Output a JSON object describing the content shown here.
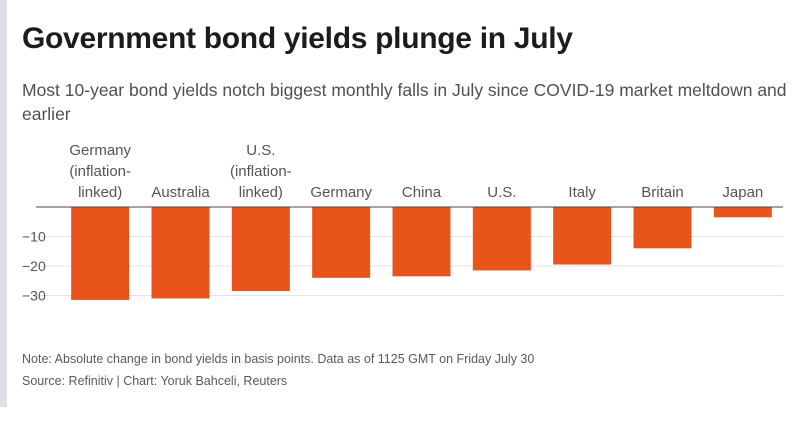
{
  "header": {
    "title": "Government bond yields plunge in July",
    "subtitle": "Most 10-year bond yields notch biggest monthly falls in July since COVID-19 market meltdown and earlier"
  },
  "footer": {
    "note": "Note: Absolute change in bond yields in basis points. Data as of 1125 GMT on Friday July 30",
    "source": "Source: Refinitiv | Chart: Yoruk Bahceli, Reuters"
  },
  "colors": {
    "bar": "#e8541a",
    "axis": "#4a4a4a",
    "grid": "#e3e3e3",
    "text": "#555555"
  },
  "chart_data": {
    "type": "bar",
    "categories": [
      [
        "Germany",
        "(inflation-",
        "linked)"
      ],
      [
        "Australia"
      ],
      [
        "U.S.",
        "(inflation-",
        "linked)"
      ],
      [
        "Germany"
      ],
      [
        "China"
      ],
      [
        "U.S."
      ],
      [
        "Italy"
      ],
      [
        "Britain"
      ],
      [
        "Japan"
      ]
    ],
    "values": [
      -31.5,
      -31,
      -28.5,
      -24,
      -23.5,
      -21.5,
      -19.5,
      -14,
      -3.5
    ],
    "yticks": [
      -10,
      -20,
      -30
    ],
    "ytick_labels": [
      "−10",
      "−20",
      "−30"
    ],
    "ylim": [
      -32,
      0
    ],
    "grid": true,
    "xlabel": "",
    "ylabel": ""
  }
}
